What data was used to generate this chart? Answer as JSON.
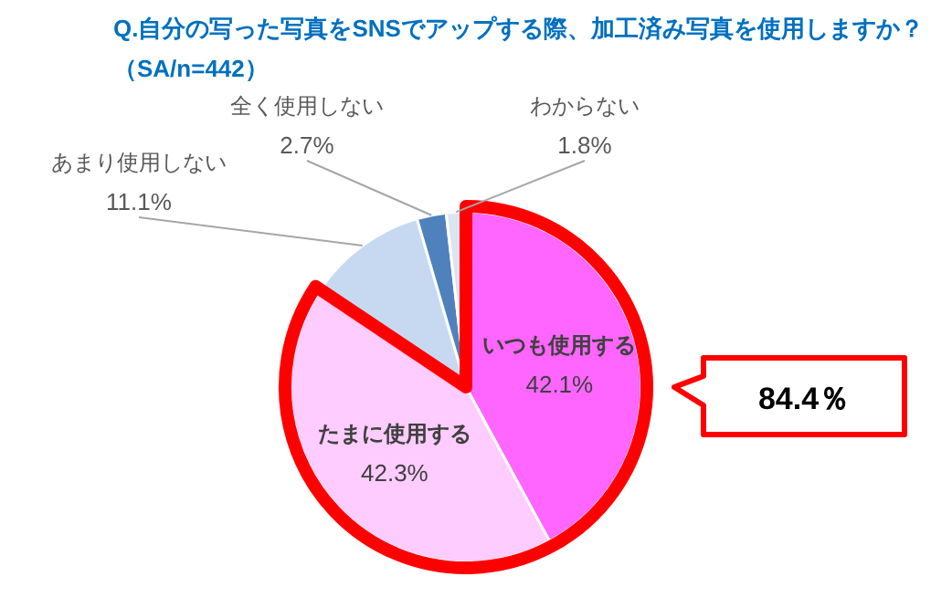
{
  "chart_data": {
    "type": "pie",
    "title": "Q.自分の写った写真をSNSでアップする際、加工済み写真を使用しますか？",
    "subtitle": "（SA/n=442）",
    "categories": [
      "いつも使用する",
      "たまに使用する",
      "あまり使用しない",
      "全く使用しない",
      "わからない"
    ],
    "values": [
      42.1,
      42.3,
      11.1,
      2.7,
      1.8
    ],
    "value_labels": [
      "42.1%",
      "42.3%",
      "11.1%",
      "2.7%",
      "1.8%"
    ],
    "colors": [
      "#ff66ff",
      "#ffccff",
      "#c6d9f1",
      "#4f81bd",
      "#dbe5f1"
    ],
    "annotations": [
      "84.4％"
    ]
  }
}
